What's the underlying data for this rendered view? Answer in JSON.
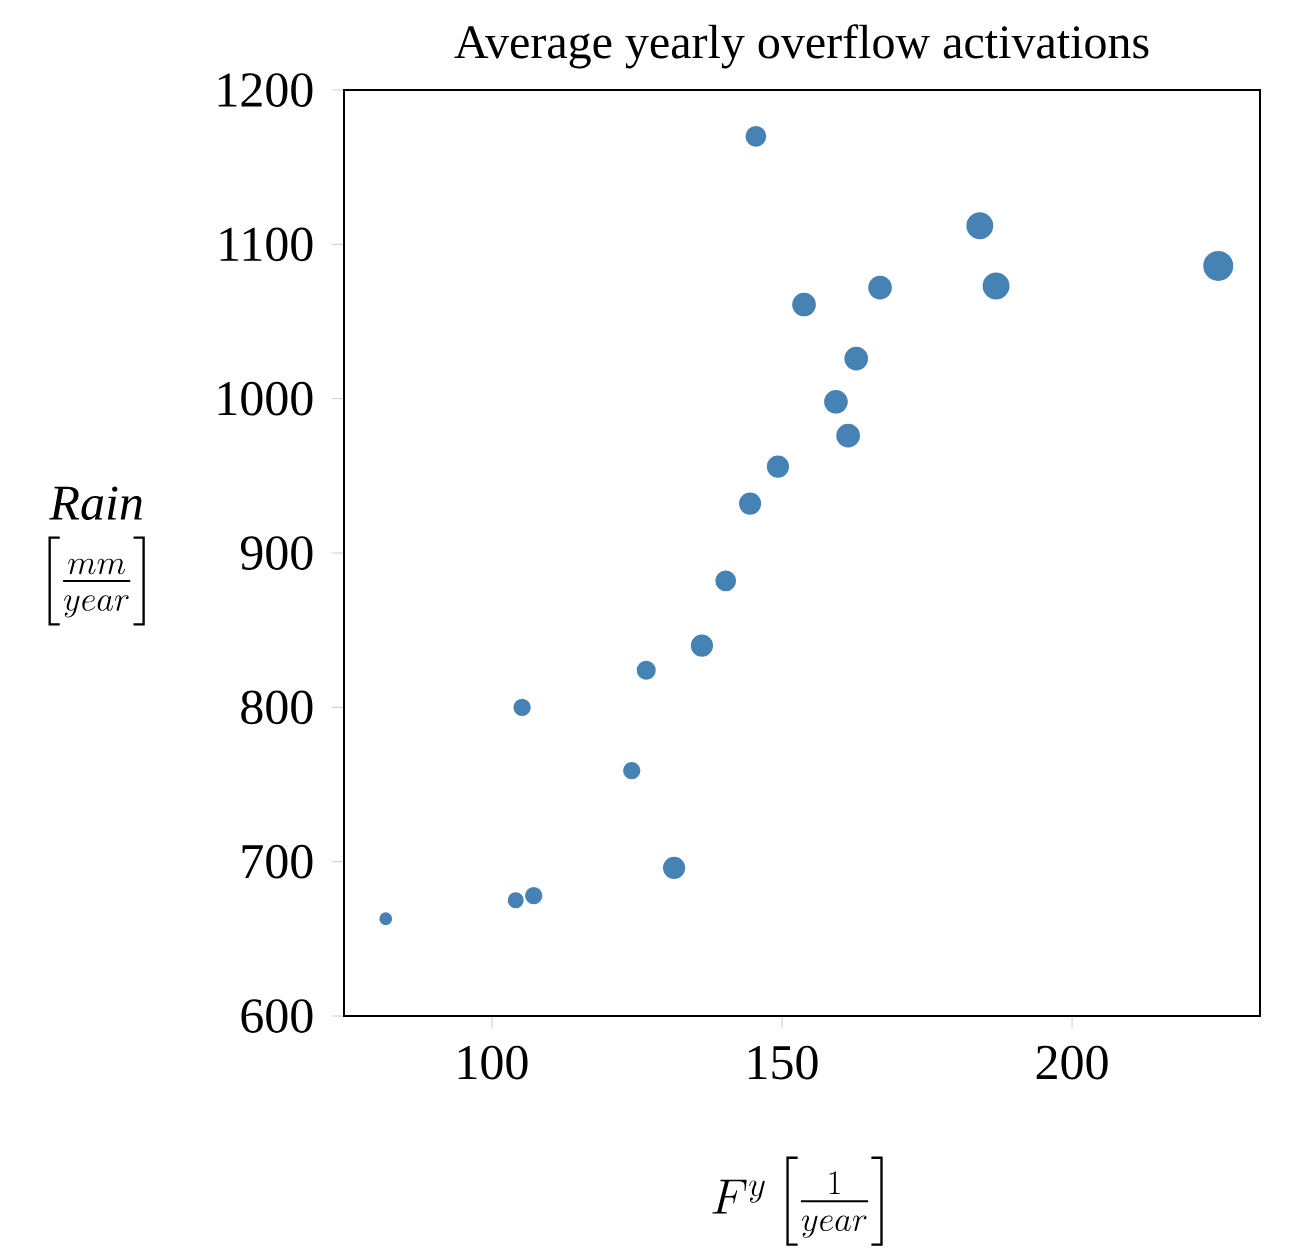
{
  "chart_data": {
    "type": "bubble",
    "title": "Average yearly overflow activations",
    "xlabel": "F^{y}\\left[\\frac{1}{year}\\right]",
    "ylabel": "\\begin{array}{c}\\mathit{Rain}\\\\ \\left[\\frac{mm}{year}\\right]\\end{array}",
    "x": [
      81.7,
      104.1,
      107.2,
      105.2,
      124.1,
      126.6,
      131.4,
      136.2,
      140.3,
      144.5,
      145.5,
      149.3,
      153.8,
      161.4,
      159.3,
      162.8,
      166.9,
      184.1,
      186.9,
      225.2
    ],
    "values": [
      663,
      675,
      678,
      800,
      759,
      824,
      696,
      840,
      882,
      932,
      1170,
      956,
      1061,
      976,
      998,
      1026,
      1072,
      1112,
      1073,
      1086
    ],
    "sizes": [
      0.15,
      0.25,
      0.3,
      0.3,
      0.3,
      0.37,
      0.52,
      0.52,
      0.45,
      0.52,
      0.45,
      0.52,
      0.6,
      0.6,
      0.6,
      0.6,
      0.6,
      0.79,
      0.79,
      1
    ],
    "color": "#4682b4",
    "xlim": [
      74.5,
      232.4
    ],
    "ylim": [
      600,
      1200
    ],
    "xticks": [
      100,
      150,
      200
    ],
    "yticks": [
      600,
      700,
      800,
      900,
      1000,
      1100,
      1200
    ],
    "grid": false
  }
}
